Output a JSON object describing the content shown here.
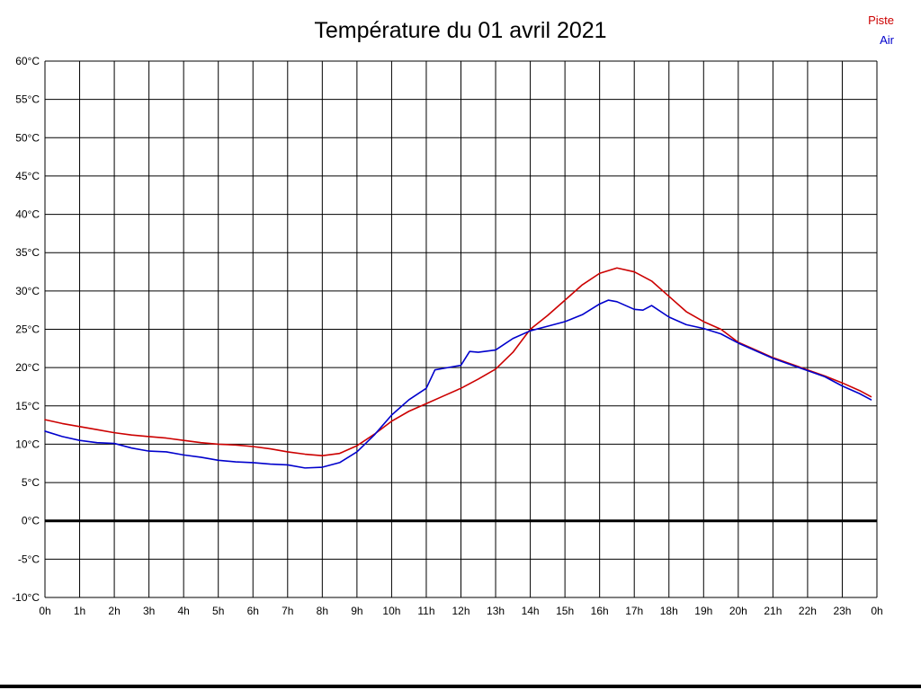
{
  "title": "Température du 01 avril 2021",
  "legend": [
    {
      "label": "Piste",
      "color": "#cc0000"
    },
    {
      "label": "Air",
      "color": "#0000cc"
    }
  ],
  "chart_data": {
    "type": "line",
    "title": "Température du 01 avril 2021",
    "xlabel": "",
    "ylabel": "",
    "xlim": [
      0,
      24
    ],
    "ylim": [
      -10,
      60
    ],
    "grid": true,
    "legend_position": "top-right",
    "zero_line_emphasized": true,
    "x_ticks": [
      0,
      1,
      2,
      3,
      4,
      5,
      6,
      7,
      8,
      9,
      10,
      11,
      12,
      13,
      14,
      15,
      16,
      17,
      18,
      19,
      20,
      21,
      22,
      23,
      24
    ],
    "x_tick_labels": [
      "0h",
      "1h",
      "2h",
      "3h",
      "4h",
      "5h",
      "6h",
      "7h",
      "8h",
      "9h",
      "10h",
      "11h",
      "12h",
      "13h",
      "14h",
      "15h",
      "16h",
      "17h",
      "18h",
      "19h",
      "20h",
      "21h",
      "22h",
      "23h",
      "0h"
    ],
    "y_ticks": [
      60,
      55,
      50,
      45,
      40,
      35,
      30,
      25,
      20,
      15,
      10,
      5,
      0,
      -5,
      -10
    ],
    "y_tick_labels": [
      "60°C",
      "55°C",
      "50°C",
      "45°C",
      "40°C",
      "35°C",
      "30°C",
      "25°C",
      "20°C",
      "15°C",
      "10°C",
      "5°C",
      "0°C",
      "-5°C",
      "-10°C"
    ],
    "series": [
      {
        "name": "Piste",
        "color": "#cc0000",
        "x": [
          0,
          0.5,
          1,
          1.5,
          2,
          2.5,
          3,
          3.5,
          4,
          4.5,
          5,
          5.5,
          6,
          6.5,
          7,
          7.5,
          8,
          8.5,
          9,
          9.5,
          10,
          10.5,
          11,
          11.5,
          12,
          12.5,
          13,
          13.5,
          14,
          14.5,
          15,
          15.5,
          16,
          16.5,
          17,
          17.5,
          18,
          18.5,
          19,
          19.5,
          20,
          20.5,
          21,
          21.5,
          22,
          22.5,
          23,
          23.5,
          23.83
        ],
        "values": [
          13.2,
          12.7,
          12.3,
          11.9,
          11.5,
          11.2,
          11.0,
          10.8,
          10.5,
          10.2,
          10.0,
          9.9,
          9.7,
          9.4,
          9.0,
          8.7,
          8.5,
          8.8,
          9.8,
          11.3,
          13.0,
          14.3,
          15.3,
          16.3,
          17.3,
          18.5,
          19.8,
          22.0,
          25.0,
          26.8,
          28.8,
          30.8,
          32.3,
          33.0,
          32.5,
          31.3,
          29.3,
          27.3,
          26.0,
          25.0,
          23.3,
          22.3,
          21.3,
          20.5,
          19.7,
          18.9,
          18.0,
          17.0,
          16.2
        ]
      },
      {
        "name": "Air",
        "color": "#0000cc",
        "x": [
          0,
          0.5,
          1,
          1.5,
          2,
          2.5,
          3,
          3.5,
          4,
          4.5,
          5,
          5.5,
          6,
          6.5,
          7,
          7.5,
          8,
          8.5,
          9,
          9.5,
          10,
          10.5,
          11,
          11.25,
          11.5,
          12,
          12.25,
          12.5,
          13,
          13.5,
          14,
          14.5,
          15,
          15.5,
          16,
          16.25,
          16.5,
          17,
          17.25,
          17.5,
          18,
          18.5,
          19,
          19.5,
          20,
          20.5,
          21,
          21.5,
          22,
          22.5,
          23,
          23.5,
          23.83
        ],
        "values": [
          11.7,
          11.0,
          10.5,
          10.2,
          10.1,
          9.5,
          9.1,
          9.0,
          8.6,
          8.3,
          7.9,
          7.7,
          7.6,
          7.4,
          7.3,
          6.9,
          7.0,
          7.6,
          9.0,
          11.2,
          13.8,
          15.8,
          17.3,
          19.7,
          19.9,
          20.3,
          22.1,
          22.0,
          22.3,
          23.8,
          24.8,
          25.4,
          26.0,
          26.9,
          28.3,
          28.8,
          28.6,
          27.6,
          27.5,
          28.1,
          26.6,
          25.6,
          25.1,
          24.4,
          23.2,
          22.2,
          21.2,
          20.4,
          19.6,
          18.8,
          17.6,
          16.6,
          15.8
        ]
      }
    ]
  }
}
